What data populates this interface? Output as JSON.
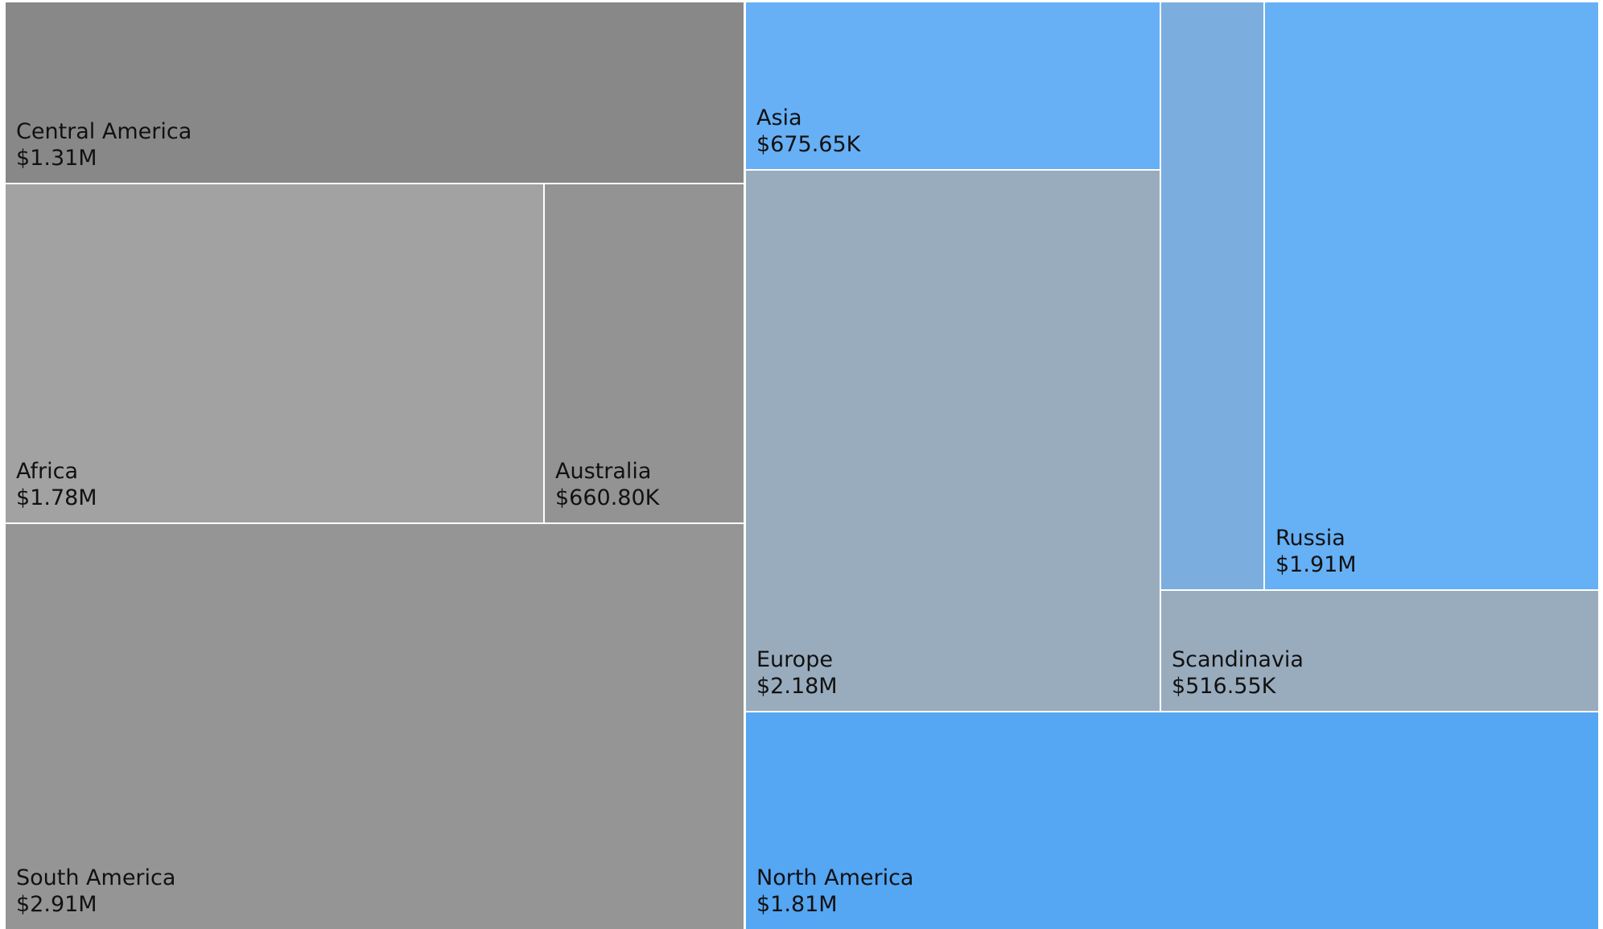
{
  "chart_data": {
    "type": "treemap",
    "title": "",
    "unit": "$",
    "nodes": [
      {
        "name": "Central America",
        "value": 1310000,
        "display": "$1.31M",
        "color": "#888888"
      },
      {
        "name": "Africa",
        "value": 1780000,
        "display": "$1.78M",
        "color": "#a2a2a2"
      },
      {
        "name": "Australia",
        "value": 660800,
        "display": "$660.80K",
        "color": "#939393"
      },
      {
        "name": "South America",
        "value": 2910000,
        "display": "$2.91M",
        "color": "#959595"
      },
      {
        "name": "Asia",
        "value": 675650,
        "display": "$675.65K",
        "color": "#67b0f5"
      },
      {
        "name": "Europe",
        "value": 2180000,
        "display": "$2.18M",
        "color": "#99acbe"
      },
      {
        "name": "",
        "value": 390000,
        "display": "",
        "color": "#7baedf"
      },
      {
        "name": "Russia",
        "value": 1910000,
        "display": "$1.91M",
        "color": "#66b0f5"
      },
      {
        "name": "Scandinavia",
        "value": 516550,
        "display": "$516.55K",
        "color": "#99acbe"
      },
      {
        "name": "North America",
        "value": 1810000,
        "display": "$1.81M",
        "color": "#55a6f3"
      }
    ]
  }
}
